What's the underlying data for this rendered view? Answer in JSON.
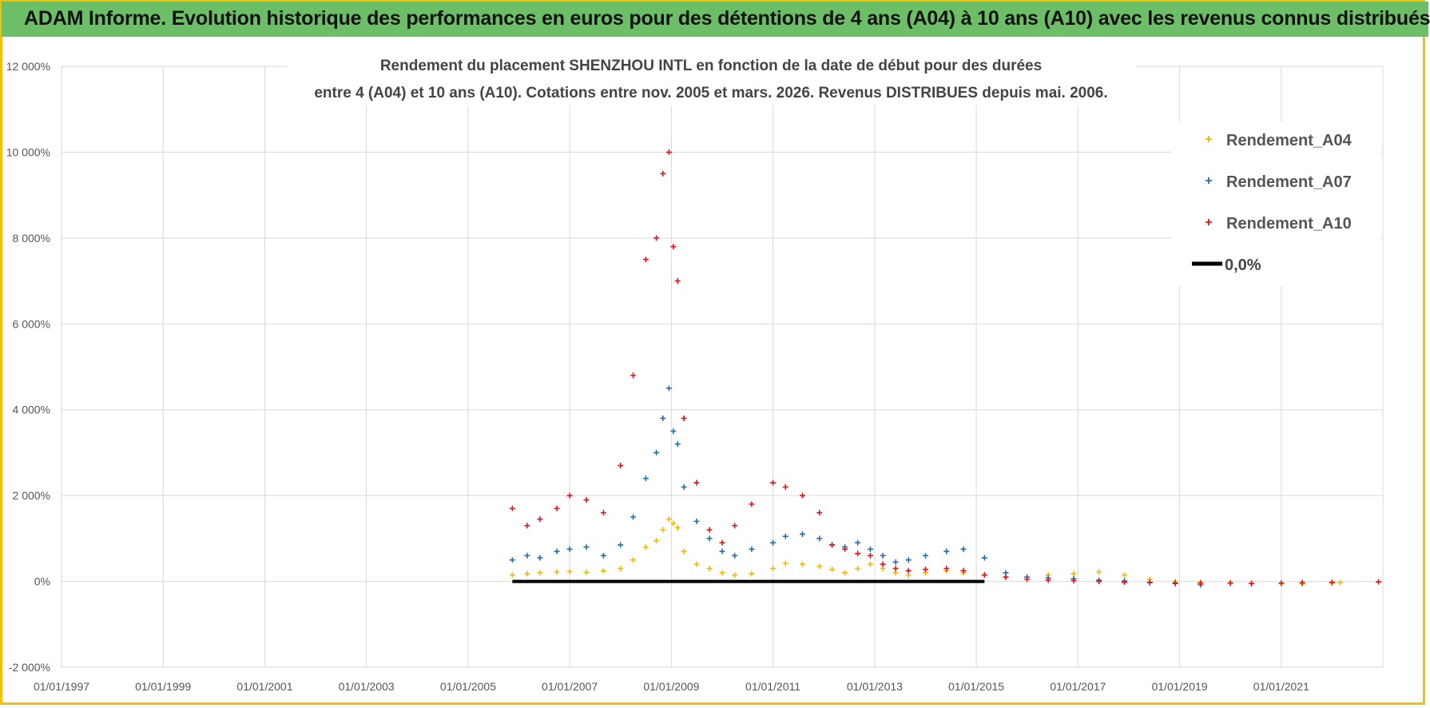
{
  "header": {
    "title": "ADAM Informe. Evolution historique des performances en euros pour des détentions de 4 ans (A04) à 10 ans (A10) avec les revenus connus distribués"
  },
  "chart_data": {
    "type": "scatter",
    "title_line1": "Rendement du placement SHENZHOU INTL en fonction de la date de début pour des durées",
    "title_line2": "entre 4 (A04) et 10 ans (A10). Cotations entre nov. 2005 et mars. 2026. Revenus DISTRIBUES depuis mai. 2006.",
    "xlim": [
      "1997-01-01",
      "2023-01-01"
    ],
    "ylim": [
      -2000,
      12000
    ],
    "y_ticks": [
      -2000,
      0,
      2000,
      4000,
      6000,
      8000,
      10000,
      12000
    ],
    "y_tick_labels": [
      "-2 000%",
      "0%",
      "2 000%",
      "4 000%",
      "6 000%",
      "8 000%",
      "10 000%",
      "12 000%"
    ],
    "x_ticks": [
      "1997-01-01",
      "1999-01-01",
      "2001-01-01",
      "2003-01-01",
      "2005-01-01",
      "2007-01-01",
      "2009-01-01",
      "2011-01-01",
      "2013-01-01",
      "2015-01-01",
      "2017-01-01",
      "2019-01-01",
      "2021-01-01"
    ],
    "x_tick_labels": [
      "01/01/1997",
      "01/01/1999",
      "01/01/2001",
      "01/01/2003",
      "01/01/2005",
      "01/01/2007",
      "01/01/2009",
      "01/01/2011",
      "01/01/2013",
      "01/01/2015",
      "01/01/2017",
      "01/01/2019",
      "01/01/2021"
    ],
    "grid": true,
    "legend_position": "top-right",
    "series": [
      {
        "name": "Rendement_A04",
        "color": "#f5b800",
        "points": [
          [
            "2005-11-15",
            150
          ],
          [
            "2006-03-01",
            180
          ],
          [
            "2006-06-01",
            200
          ],
          [
            "2006-10-01",
            220
          ],
          [
            "2007-01-01",
            230
          ],
          [
            "2007-05-01",
            210
          ],
          [
            "2007-09-01",
            250
          ],
          [
            "2008-01-01",
            300
          ],
          [
            "2008-04-01",
            500
          ],
          [
            "2008-07-01",
            800
          ],
          [
            "2008-09-15",
            950
          ],
          [
            "2008-11-01",
            1200
          ],
          [
            "2008-12-15",
            1450
          ],
          [
            "2009-01-15",
            1350
          ],
          [
            "2009-02-15",
            1250
          ],
          [
            "2009-04-01",
            700
          ],
          [
            "2009-07-01",
            400
          ],
          [
            "2009-10-01",
            300
          ],
          [
            "2010-01-01",
            200
          ],
          [
            "2010-04-01",
            150
          ],
          [
            "2010-08-01",
            180
          ],
          [
            "2011-01-01",
            300
          ],
          [
            "2011-04-01",
            420
          ],
          [
            "2011-08-01",
            400
          ],
          [
            "2011-12-01",
            350
          ],
          [
            "2012-03-01",
            280
          ],
          [
            "2012-06-01",
            200
          ],
          [
            "2012-09-01",
            300
          ],
          [
            "2012-12-01",
            400
          ],
          [
            "2013-03-01",
            300
          ],
          [
            "2013-06-01",
            200
          ],
          [
            "2013-09-01",
            150
          ],
          [
            "2014-01-01",
            200
          ],
          [
            "2014-06-01",
            250
          ],
          [
            "2014-10-01",
            200
          ],
          [
            "2015-03-01",
            150
          ],
          [
            "2015-08-01",
            100
          ],
          [
            "2016-01-01",
            100
          ],
          [
            "2016-06-01",
            150
          ],
          [
            "2016-12-01",
            180
          ],
          [
            "2017-06-01",
            220
          ],
          [
            "2017-12-01",
            150
          ],
          [
            "2018-06-01",
            50
          ],
          [
            "2018-12-01",
            0
          ],
          [
            "2019-06-01",
            -20
          ],
          [
            "2020-01-01",
            -30
          ],
          [
            "2020-06-01",
            -40
          ],
          [
            "2021-01-01",
            -50
          ],
          [
            "2021-06-01",
            -60
          ],
          [
            "2022-01-01",
            -40
          ],
          [
            "2022-03-01",
            -30
          ]
        ]
      },
      {
        "name": "Rendement_A07",
        "color": "#1f6fb5",
        "points": [
          [
            "2005-11-15",
            500
          ],
          [
            "2006-03-01",
            600
          ],
          [
            "2006-06-01",
            550
          ],
          [
            "2006-10-01",
            700
          ],
          [
            "2007-01-01",
            750
          ],
          [
            "2007-05-01",
            800
          ],
          [
            "2007-09-01",
            600
          ],
          [
            "2008-01-01",
            850
          ],
          [
            "2008-04-01",
            1500
          ],
          [
            "2008-07-01",
            2400
          ],
          [
            "2008-09-15",
            3000
          ],
          [
            "2008-11-01",
            3800
          ],
          [
            "2008-12-15",
            4500
          ],
          [
            "2009-01-15",
            3500
          ],
          [
            "2009-02-15",
            3200
          ],
          [
            "2009-04-01",
            2200
          ],
          [
            "2009-07-01",
            1400
          ],
          [
            "2009-10-01",
            1000
          ],
          [
            "2010-01-01",
            700
          ],
          [
            "2010-04-01",
            600
          ],
          [
            "2010-08-01",
            750
          ],
          [
            "2011-01-01",
            900
          ],
          [
            "2011-04-01",
            1050
          ],
          [
            "2011-08-01",
            1100
          ],
          [
            "2011-12-01",
            1000
          ],
          [
            "2012-03-01",
            850
          ],
          [
            "2012-06-01",
            800
          ],
          [
            "2012-09-01",
            900
          ],
          [
            "2012-12-01",
            750
          ],
          [
            "2013-03-01",
            600
          ],
          [
            "2013-06-01",
            450
          ],
          [
            "2013-09-01",
            500
          ],
          [
            "2014-01-01",
            600
          ],
          [
            "2014-06-01",
            700
          ],
          [
            "2014-10-01",
            750
          ],
          [
            "2015-03-01",
            550
          ],
          [
            "2015-08-01",
            200
          ],
          [
            "2016-01-01",
            100
          ],
          [
            "2016-06-01",
            80
          ],
          [
            "2016-12-01",
            60
          ],
          [
            "2017-06-01",
            30
          ],
          [
            "2017-12-01",
            10
          ],
          [
            "2018-06-01",
            -20
          ],
          [
            "2018-12-01",
            -50
          ],
          [
            "2019-06-01",
            -80
          ]
        ]
      },
      {
        "name": "Rendement_A10",
        "color": "#e8101a",
        "points": [
          [
            "2005-11-15",
            1700
          ],
          [
            "2006-03-01",
            1300
          ],
          [
            "2006-06-01",
            1450
          ],
          [
            "2006-10-01",
            1700
          ],
          [
            "2007-01-01",
            2000
          ],
          [
            "2007-05-01",
            1900
          ],
          [
            "2007-09-01",
            1600
          ],
          [
            "2008-01-01",
            2700
          ],
          [
            "2008-04-01",
            4800
          ],
          [
            "2008-07-01",
            7500
          ],
          [
            "2008-09-15",
            8000
          ],
          [
            "2008-11-01",
            9500
          ],
          [
            "2008-12-15",
            10000
          ],
          [
            "2009-01-15",
            7800
          ],
          [
            "2009-02-15",
            7000
          ],
          [
            "2009-04-01",
            3800
          ],
          [
            "2009-07-01",
            2300
          ],
          [
            "2009-10-01",
            1200
          ],
          [
            "2010-01-01",
            900
          ],
          [
            "2010-04-01",
            1300
          ],
          [
            "2010-08-01",
            1800
          ],
          [
            "2011-01-01",
            2300
          ],
          [
            "2011-04-01",
            2200
          ],
          [
            "2011-08-01",
            2000
          ],
          [
            "2011-12-01",
            1600
          ],
          [
            "2012-03-01",
            850
          ],
          [
            "2012-06-01",
            750
          ],
          [
            "2012-09-01",
            650
          ],
          [
            "2012-12-01",
            600
          ],
          [
            "2013-03-01",
            400
          ],
          [
            "2013-06-01",
            300
          ],
          [
            "2013-09-01",
            250
          ],
          [
            "2014-01-01",
            280
          ],
          [
            "2014-06-01",
            300
          ],
          [
            "2014-10-01",
            250
          ],
          [
            "2015-03-01",
            150
          ],
          [
            "2015-08-01",
            100
          ],
          [
            "2016-01-01",
            50
          ],
          [
            "2016-06-01",
            30
          ],
          [
            "2016-12-01",
            20
          ],
          [
            "2017-06-01",
            0
          ],
          [
            "2017-12-01",
            -20
          ],
          [
            "2018-06-01",
            -30
          ],
          [
            "2018-12-01",
            -40
          ],
          [
            "2019-06-01",
            -40
          ],
          [
            "2020-01-01",
            -40
          ],
          [
            "2020-06-01",
            -50
          ],
          [
            "2021-01-01",
            -40
          ],
          [
            "2021-06-01",
            -30
          ],
          [
            "2022-01-01",
            -20
          ],
          [
            "2022-12-01",
            -10
          ]
        ]
      },
      {
        "name": "0,0%",
        "color": "#000000",
        "line": [
          [
            "2005-11-15",
            0
          ],
          [
            "2015-03-01",
            0
          ]
        ]
      }
    ]
  }
}
